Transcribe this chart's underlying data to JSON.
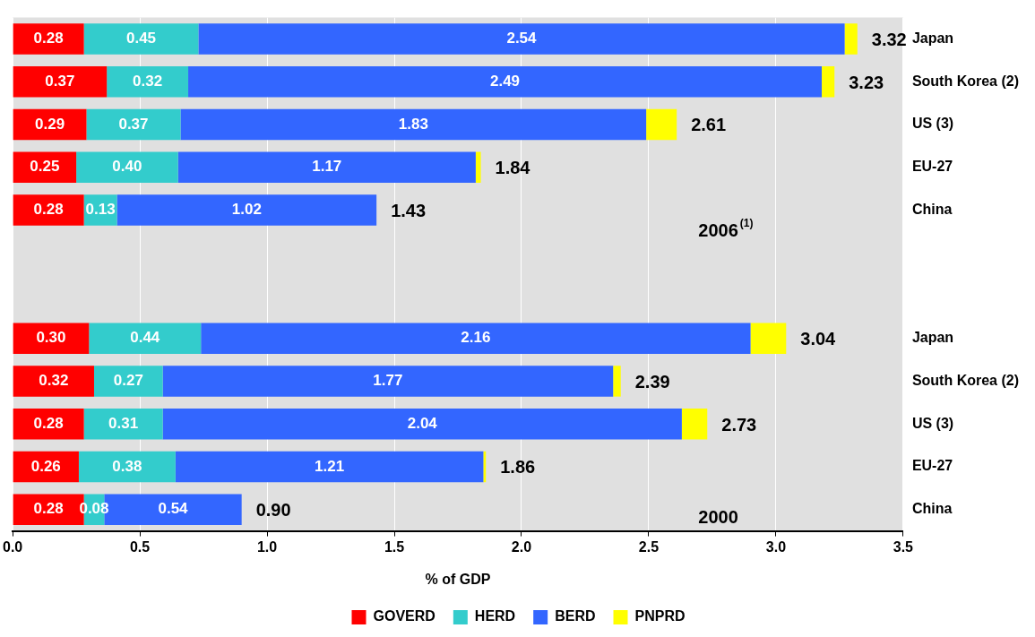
{
  "chart_data": {
    "type": "bar",
    "orientation": "horizontal",
    "stacked": true,
    "xlabel": "% of GDP",
    "categories": [
      "Japan",
      "South Korea (2)",
      "US (3)",
      "EU-27",
      "China",
      null,
      null,
      "Japan",
      "South Korea (2)",
      "US (3)",
      "EU-27",
      "China"
    ],
    "series": [
      {
        "name": "GOVERD",
        "color": "#ff0000",
        "values": [
          0.28,
          0.37,
          0.29,
          0.25,
          0.28,
          null,
          null,
          0.3,
          0.32,
          0.28,
          0.26,
          0.28
        ],
        "value_labels": [
          "0.28",
          "0.37",
          "0.29",
          "0.25",
          "0.28",
          null,
          null,
          "0.30",
          "0.32",
          "0.28",
          "0.26",
          "0.28"
        ]
      },
      {
        "name": "HERD",
        "color": "#33cccc",
        "values": [
          0.45,
          0.32,
          0.37,
          0.4,
          0.13,
          null,
          null,
          0.44,
          0.27,
          0.31,
          0.38,
          0.08
        ],
        "value_labels": [
          "0.45",
          "0.32",
          "0.37",
          "0.40",
          "0.13",
          null,
          null,
          "0.44",
          "0.27",
          "0.31",
          "0.38",
          "0.08"
        ]
      },
      {
        "name": "BERD",
        "color": "#3366ff",
        "values": [
          2.54,
          2.49,
          1.83,
          1.17,
          1.02,
          null,
          null,
          2.16,
          1.77,
          2.04,
          1.21,
          0.54
        ],
        "value_labels": [
          "2.54",
          "2.49",
          "1.83",
          "1.17",
          "1.02",
          null,
          null,
          "2.16",
          "1.77",
          "2.04",
          "1.21",
          "0.54"
        ]
      },
      {
        "name": "PNPRD",
        "color": "#ffff00",
        "values": [
          0.05,
          0.05,
          0.12,
          0.02,
          0,
          null,
          null,
          0.14,
          0.03,
          0.1,
          0.01,
          0
        ]
      }
    ],
    "totals": [
      "3.32",
      "3.23",
      "2.61",
      "1.84",
      "1.43",
      null,
      null,
      "3.04",
      "2.39",
      "2.73",
      "1.86",
      "0.90"
    ],
    "annotations": [
      "2006$^{(1)}$",
      "2000"
    ],
    "xlim": [
      0,
      3.5
    ],
    "xticks": [
      {
        "value": 0,
        "label": "0.0"
      },
      {
        "value": 0.5,
        "label": "0.5"
      },
      {
        "value": 1,
        "label": "1.0"
      },
      {
        "value": 1.5,
        "label": "1.5"
      },
      {
        "value": 2,
        "label": "2.0"
      },
      {
        "value": 2.5,
        "label": "2.5"
      },
      {
        "value": 3,
        "label": "3.0"
      },
      {
        "value": 3.5,
        "label": "3.5"
      }
    ],
    "grid": "x",
    "legend": "bottom"
  }
}
